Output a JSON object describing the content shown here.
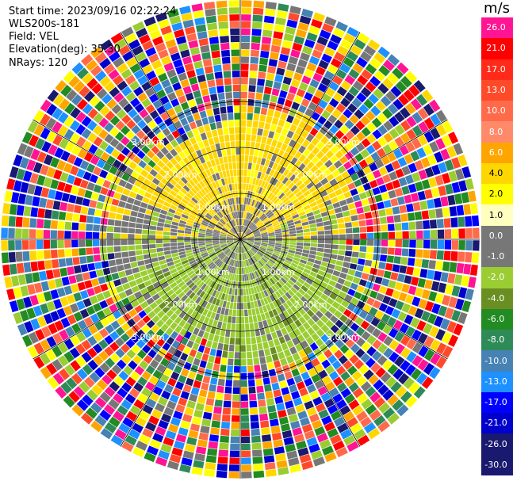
{
  "header": {
    "start_time": "Start time: 2023/09/16 02:22:24",
    "instrument": "WLS200s-181",
    "field": "Field: VEL",
    "elevation": "Elevation(deg): 35.30",
    "nrays": "NRays: 120"
  },
  "colorbar": {
    "unit": "m/s",
    "ticks": [
      "26.0",
      "21.0",
      "17.0",
      "13.0",
      "10.0",
      "8.0",
      "6.0",
      "4.0",
      "2.0",
      "1.0",
      "0.0",
      "-1.0",
      "-2.0",
      "-4.0",
      "-6.0",
      "-8.0",
      "-10.0",
      "-13.0",
      "-17.0",
      "-21.0",
      "-26.0",
      "-30.0"
    ],
    "colors": [
      "#ff1493",
      "#ff0000",
      "#ff2a1a",
      "#ff4a2a",
      "#ff6a4a",
      "#ff8a6a",
      "#ffa500",
      "#ffd700",
      "#ffff00",
      "#ffffc0",
      "#777777",
      "#777777",
      "#9acd32",
      "#6b8e23",
      "#228b22",
      "#2e8b57",
      "#4682b4",
      "#1e90ff",
      "#0000ff",
      "#0000cd",
      "#191970",
      "#191970"
    ]
  },
  "chart_data": {
    "type": "heatmap",
    "projection": "polar PPI",
    "field": "VEL",
    "units": "m/s",
    "nrays": 120,
    "range_rings_km": [
      1.0,
      2.0,
      3.0
    ],
    "ring_labels": [
      "1.00km",
      "2.00km",
      "3.00km"
    ],
    "spoke_angles_deg": [
      0,
      30,
      60,
      90,
      120,
      150,
      180,
      210,
      240,
      270,
      300,
      330
    ],
    "pattern": "positive velocities (yellow, ~1–2 m/s) in the north half, negative velocities (green, ~-1 to -2 m/s) in the south half, near-zero grey in the center, noisy random colors beyond ~2.5 km"
  }
}
